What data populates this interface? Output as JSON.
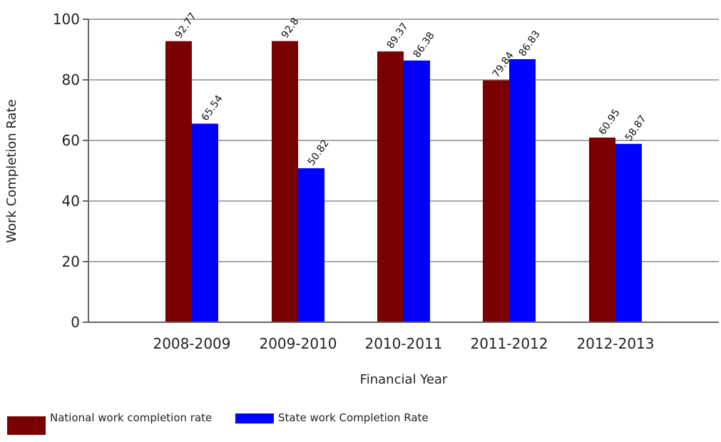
{
  "chart_data": {
    "type": "bar",
    "title": "",
    "xlabel": "Financial Year",
    "ylabel": "Work Completion Rate",
    "ylim": [
      0,
      100
    ],
    "yticks": [
      0,
      20,
      40,
      60,
      80,
      100
    ],
    "grid": true,
    "legend_position": "bottom-left",
    "categories": [
      "2008-2009",
      "2009-2010",
      "2010-2011",
      "2011-2012",
      "2012-2013"
    ],
    "series": [
      {
        "name": "National work completion rate",
        "color": "#7a0000",
        "values": [
          92.77,
          92.8,
          89.37,
          79.84,
          60.95
        ],
        "labels": [
          "92.77",
          "92.8",
          "89.37",
          "79.84",
          "60.95"
        ]
      },
      {
        "name": "State work Completion Rate",
        "color": "#0000ff",
        "values": [
          65.54,
          50.82,
          86.38,
          86.83,
          58.87
        ],
        "labels": [
          "65.54",
          "50.82",
          "86.38",
          "86.83",
          "58.87"
        ]
      }
    ]
  }
}
